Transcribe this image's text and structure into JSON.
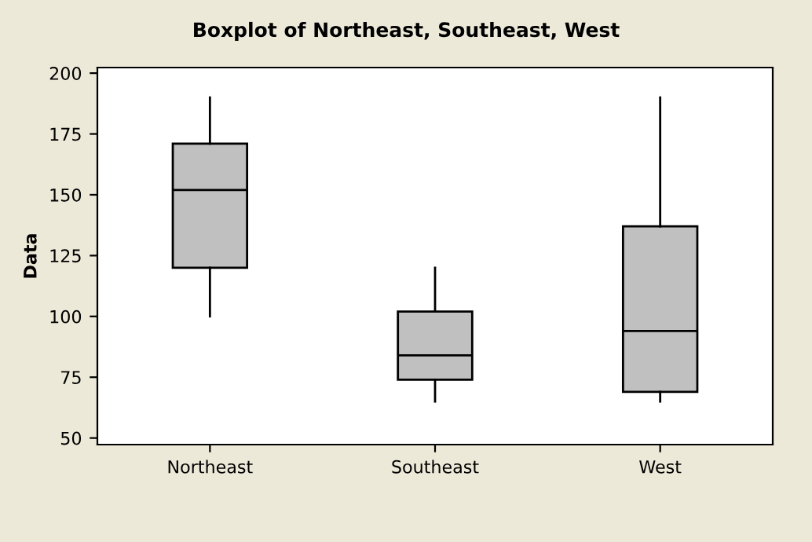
{
  "chart_data": {
    "type": "box",
    "title": "Boxplot of Northeast, Southeast, West",
    "ylabel": "Data",
    "categories": [
      "Northeast",
      "Southeast",
      "West"
    ],
    "color": "#c0c0c0",
    "boxes": [
      {
        "low": 100,
        "q1": 120,
        "median": 152,
        "q3": 171,
        "high": 190
      },
      {
        "low": 65,
        "q1": 74,
        "median": 84,
        "q3": 102,
        "high": 120
      },
      {
        "low": 65,
        "q1": 69,
        "median": 94,
        "q3": 137,
        "high": 190
      }
    ],
    "ylim": [
      47.3,
      202.3
    ],
    "yticks": [
      50,
      75,
      100,
      125,
      150,
      175,
      200
    ],
    "grid": false
  }
}
